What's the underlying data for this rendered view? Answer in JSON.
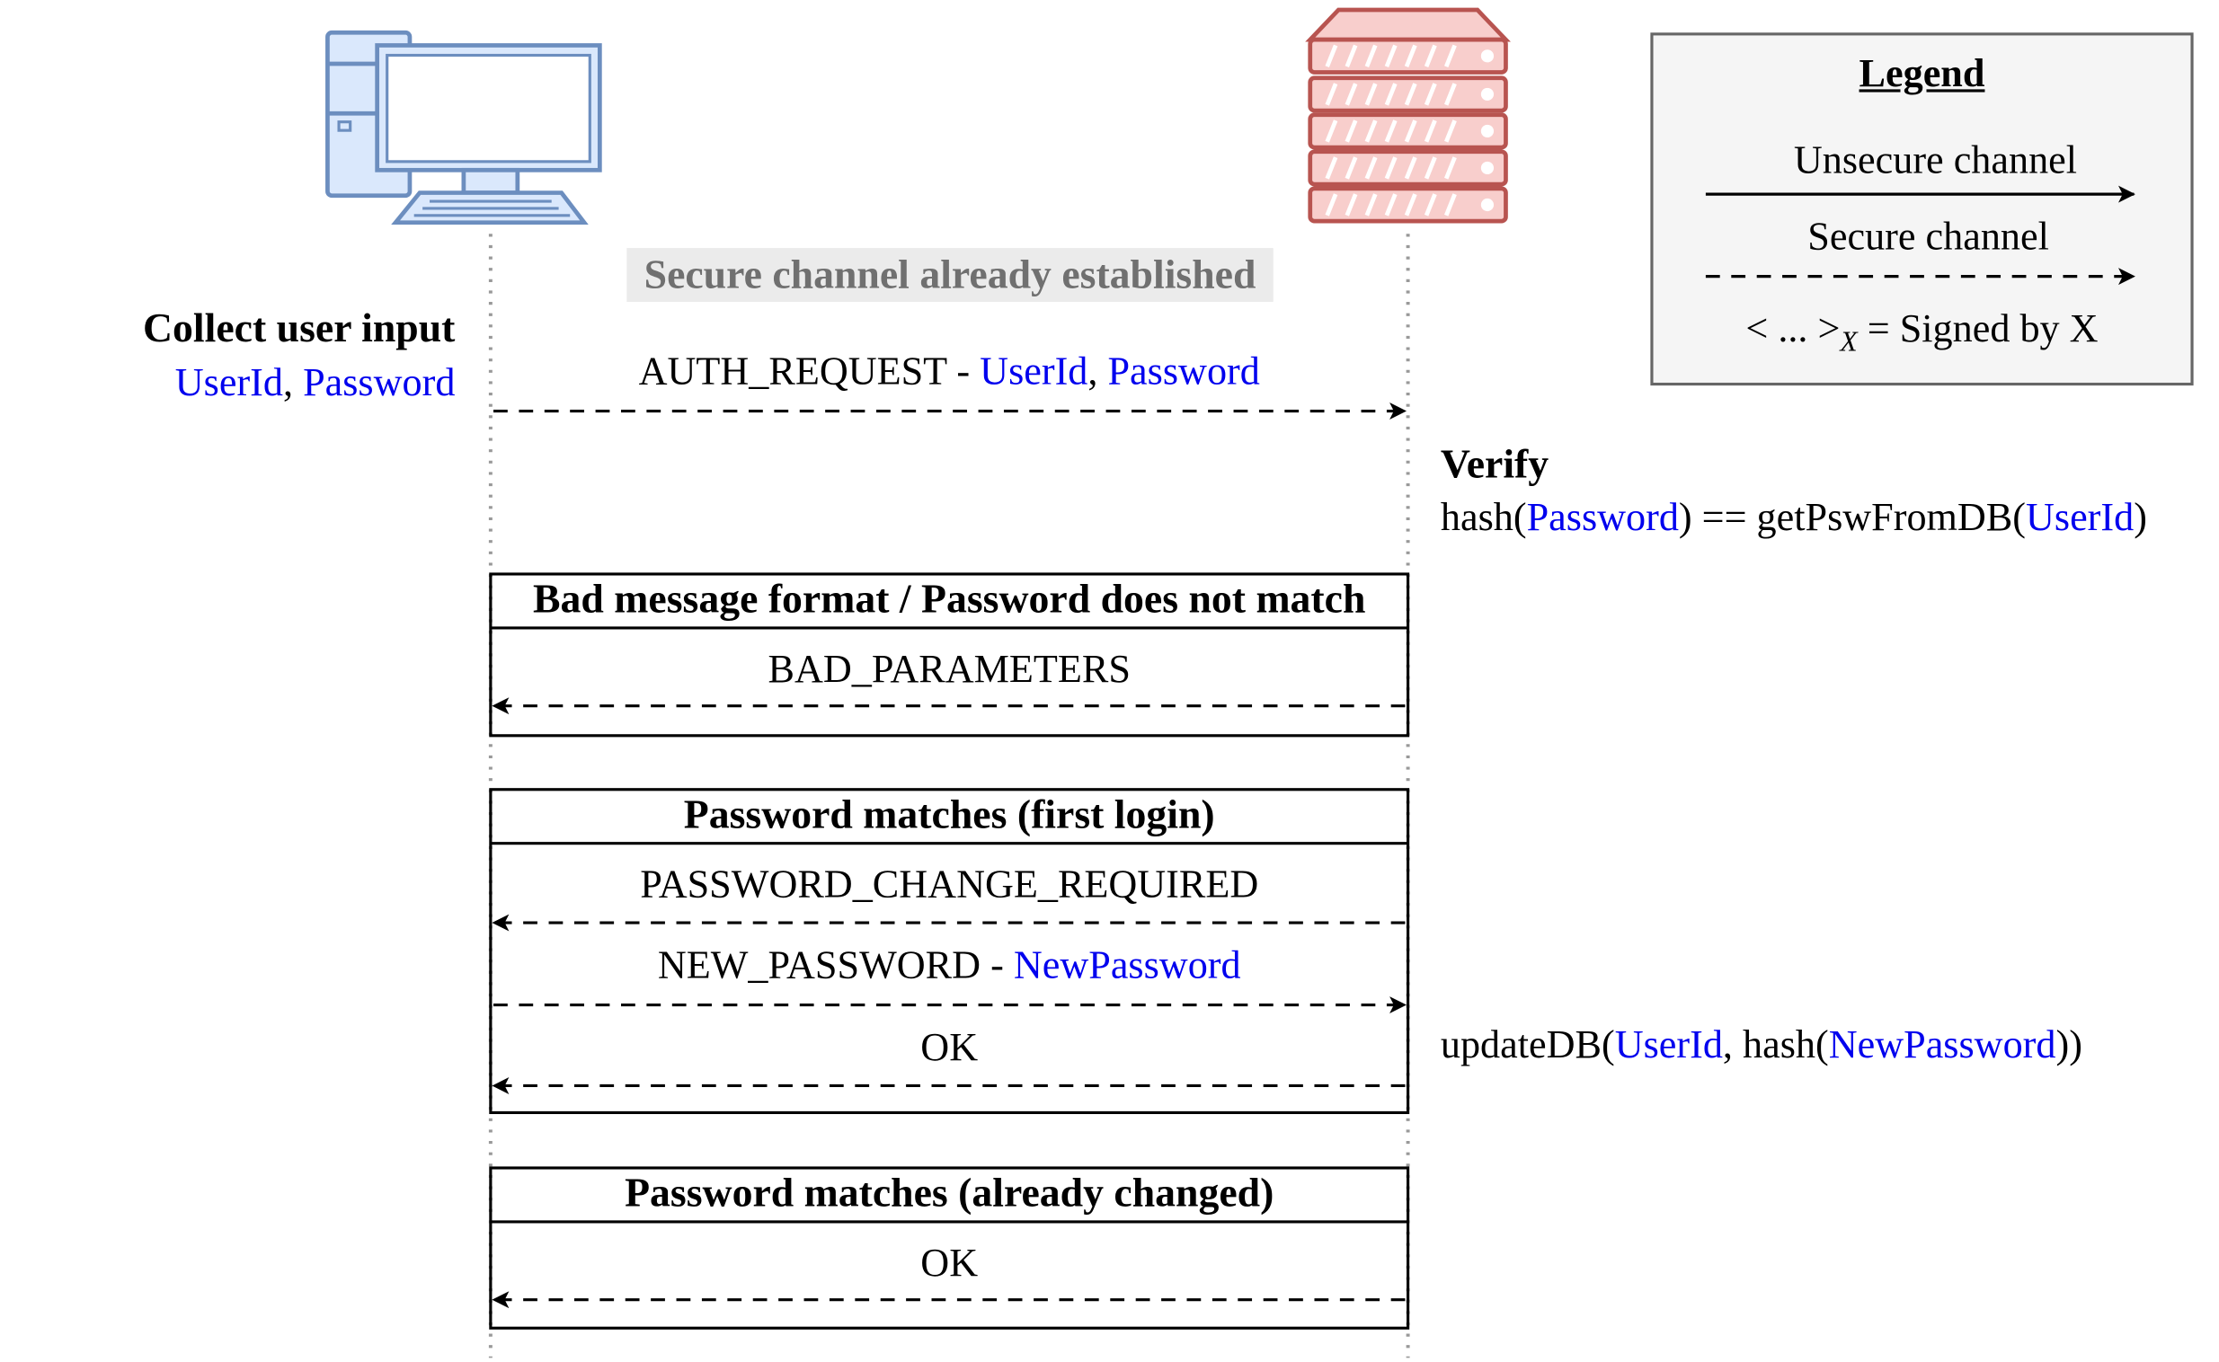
{
  "colors": {
    "client_icon": "#6c8ebf",
    "client_fill": "#dae8fc",
    "server_icon": "#b85450",
    "server_fill": "#f8cecc",
    "variable_text": "#0000ee",
    "legend_fill": "#f5f5f5",
    "banner_fill": "#ebebeb"
  },
  "icons": {
    "client": "desktop-computer-icon",
    "server": "server-rack-icon"
  },
  "banner": "Secure channel already established",
  "client_note": {
    "title": "Collect user input",
    "var1": "UserId",
    "sep": ", ",
    "var2": "Password"
  },
  "auth_request": {
    "label": "AUTH_REQUEST - ",
    "var1": "UserId",
    "sep": ", ",
    "var2": "Password"
  },
  "verify": {
    "title": "Verify",
    "pre": "hash(",
    "var1": "Password",
    "mid": ") == getPswFromDB(",
    "var2": "UserId",
    "post": ")"
  },
  "frames": [
    {
      "title": "Bad message format / Password does not match",
      "messages": [
        {
          "label": "BAD_PARAMETERS"
        }
      ]
    },
    {
      "title": "Password matches (first login)",
      "messages": [
        {
          "label": "PASSWORD_CHANGE_REQUIRED"
        },
        {
          "label": "NEW_PASSWORD - ",
          "var": "NewPassword"
        },
        {
          "label": "OK"
        }
      ]
    },
    {
      "title": "Password matches (already changed)",
      "messages": [
        {
          "label": "OK"
        }
      ]
    }
  ],
  "update_note": {
    "pre": "updateDB(",
    "var1": "UserId",
    "mid": ", hash(",
    "var2": "NewPassword",
    "post": "))"
  },
  "legend": {
    "title": "Legend",
    "unsecure": "Unsecure channel",
    "secure": "Secure channel",
    "signed_pre": "< ... >",
    "signed_sub": "X",
    "signed_post": " = Signed by X"
  }
}
